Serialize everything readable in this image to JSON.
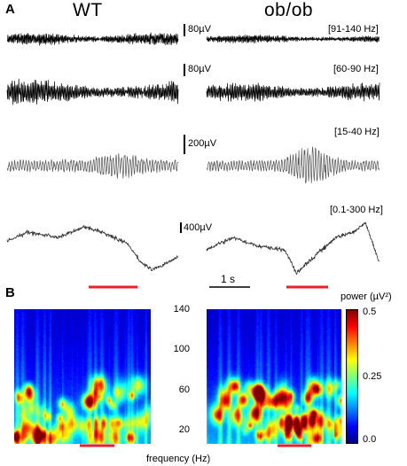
{
  "panels": {
    "a_label": "A",
    "b_label": "B"
  },
  "groups": {
    "wt": "WT",
    "obob": "ob/ob"
  },
  "traces": [
    {
      "band": "[91-140 Hz]",
      "scale": "80µV",
      "color": "#000000"
    },
    {
      "band": "[60-90 Hz]",
      "scale": "80µV",
      "color": "#000000"
    },
    {
      "band": "[15-40 Hz]",
      "scale": "200µV",
      "color": "#555555"
    },
    {
      "band": "[0.1-300 Hz]",
      "scale": "400µV",
      "color": "#333333"
    }
  ],
  "time_scale": "1 s",
  "highlight_color": "#e8202a",
  "spectrogram": {
    "freq_ticks": [
      "140",
      "100",
      "60",
      "20"
    ],
    "xlabel": "frequency (Hz)",
    "colorbar_title": "power (µV²)",
    "colorbar_ticks": [
      "0.5",
      "0.25",
      "0.0"
    ]
  }
}
